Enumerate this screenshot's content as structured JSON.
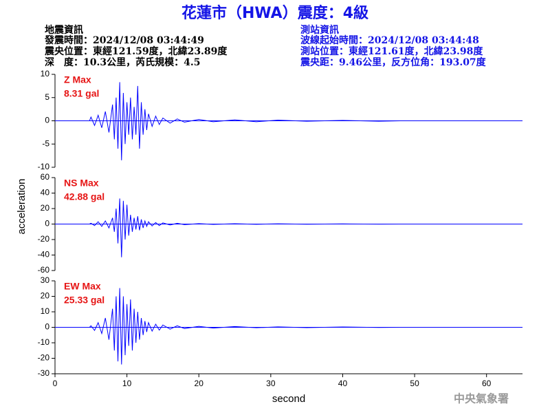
{
  "header": {
    "title": "花蓮市（HWA）震度：4級",
    "left": [
      "地震資訊",
      "發震時間：2024/12/08 03:44:49",
      "震央位置：東經121.59度，北緯23.89度",
      "深　度：10.3公里，芮氏規模：4.5"
    ],
    "right": [
      "測站資訊",
      "波線起始時間：2024/12/08 03:44:48",
      "測站位置：東經121.61度，北緯23.98度",
      "震央距：9.46公里，反方位角：193.07度"
    ]
  },
  "footer": "中央氣象署",
  "chart_data": [
    {
      "type": "line",
      "label": "Z Max",
      "max_label": "8.31 gal",
      "x": [
        4.8,
        5,
        5.5,
        6,
        6.5,
        7,
        7.5,
        8,
        8.25,
        8.5,
        8.75,
        9,
        9.25,
        9.5,
        9.75,
        10,
        10.25,
        10.5,
        10.75,
        11,
        11.25,
        11.5,
        11.75,
        12,
        12.25,
        12.5,
        12.75,
        13,
        13.5,
        14,
        14.5,
        15,
        16,
        17,
        18,
        20,
        22,
        25,
        28,
        31,
        35,
        40,
        45,
        48
      ],
      "series": [
        {
          "name": "Z",
          "color": "#0000ff",
          "values": [
            0,
            0.8,
            -1,
            1.2,
            -1.5,
            2,
            -2.5,
            3.5,
            -4,
            5,
            -6,
            8.31,
            -8.5,
            6,
            -5,
            4,
            -3,
            5,
            -4,
            3,
            -3,
            7.5,
            -6,
            4,
            -3,
            2.5,
            -2,
            1.5,
            -1.2,
            1,
            -0.8,
            0.6,
            -0.5,
            0.4,
            -0.3,
            0.3,
            -0.2,
            0.2,
            -0.2,
            0.15,
            -0.1,
            0.1,
            -0.1,
            0
          ]
        }
      ],
      "xlim": [
        0,
        65
      ],
      "ylim": [
        -10,
        10
      ],
      "yticks": [
        10,
        5,
        0,
        -5,
        -10
      ]
    },
    {
      "type": "line",
      "label": "NS Max",
      "max_label": "42.88 gal",
      "ylabel": "acceleration",
      "x": [
        4.8,
        5,
        5.5,
        6,
        6.5,
        7,
        7.5,
        8,
        8.25,
        8.5,
        8.75,
        9,
        9.25,
        9.5,
        9.75,
        10,
        10.25,
        10.5,
        10.75,
        11,
        11.25,
        11.5,
        11.75,
        12,
        12.25,
        12.5,
        12.75,
        13,
        13.5,
        14,
        14.5,
        15,
        16,
        17,
        18,
        20,
        22,
        25,
        28,
        31,
        35,
        40,
        45,
        48
      ],
      "series": [
        {
          "name": "NS",
          "color": "#0000ff",
          "values": [
            0,
            1,
            -2,
            3,
            -3,
            4,
            -5,
            8,
            -10,
            20,
            -25,
            33,
            -42.88,
            30,
            -20,
            25,
            -15,
            12,
            -10,
            8,
            -7,
            10,
            -8,
            6,
            -5,
            4,
            -3,
            3,
            -2.5,
            2,
            -2,
            1.5,
            -1.2,
            1,
            -0.8,
            0.6,
            -0.5,
            0.4,
            -0.3,
            0.3,
            -0.2,
            0.2,
            -0.1,
            0
          ]
        }
      ],
      "xlim": [
        0,
        65
      ],
      "ylim": [
        -60,
        60
      ],
      "yticks": [
        60,
        40,
        20,
        0,
        -20,
        -40,
        -60
      ]
    },
    {
      "type": "line",
      "label": "EW Max",
      "max_label": "25.33 gal",
      "xlabel": "second",
      "x": [
        4.8,
        5,
        5.5,
        6,
        6.5,
        7,
        7.5,
        8,
        8.25,
        8.5,
        8.75,
        9,
        9.25,
        9.5,
        9.75,
        10,
        10.25,
        10.5,
        10.75,
        11,
        11.25,
        11.5,
        11.75,
        12,
        12.25,
        12.5,
        12.75,
        13,
        13.5,
        14,
        14.5,
        15,
        16,
        17,
        18,
        20,
        22,
        25,
        28,
        31,
        35,
        40,
        45,
        48
      ],
      "series": [
        {
          "name": "EW",
          "color": "#0000ff",
          "values": [
            0,
            1,
            -2,
            3,
            -4,
            6,
            -8,
            12,
            -15,
            20,
            -22,
            25.33,
            -24,
            20,
            -18,
            15,
            -12,
            18,
            -15,
            12,
            -10,
            10,
            -8,
            6,
            -5,
            4,
            -3,
            3,
            -2.5,
            2,
            -1.8,
            1.5,
            -1.2,
            1,
            -0.8,
            0.6,
            -0.5,
            0.5,
            -0.3,
            0.3,
            -0.2,
            0.2,
            -0.1,
            0
          ]
        }
      ],
      "xlim": [
        0,
        65
      ],
      "ylim": [
        -30,
        30
      ],
      "yticks": [
        30,
        20,
        10,
        0,
        -10,
        -20,
        -30
      ],
      "xticks": [
        0,
        10,
        20,
        30,
        40,
        50,
        60
      ]
    }
  ]
}
